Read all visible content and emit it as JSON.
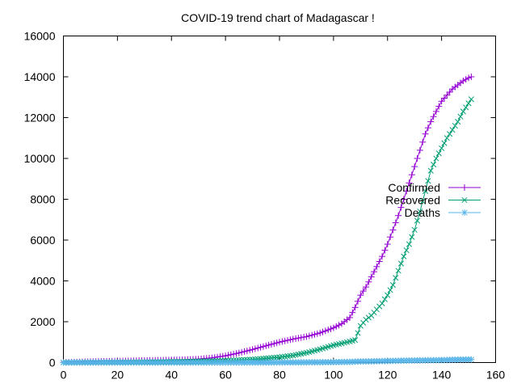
{
  "chart_data": {
    "type": "line",
    "title": "COVID-19 trend chart of Madagascar !",
    "xlabel": "",
    "ylabel": "",
    "xlim": [
      0,
      160
    ],
    "ylim": [
      0,
      16000
    ],
    "x_ticks": [
      0,
      20,
      40,
      60,
      80,
      100,
      120,
      140,
      160
    ],
    "y_ticks": [
      0,
      2000,
      4000,
      6000,
      8000,
      10000,
      12000,
      14000,
      16000
    ],
    "grid": false,
    "legend_position": "right",
    "series": [
      {
        "name": "Confirmed",
        "color": "#9400d3",
        "marker": "plus",
        "points": [
          [
            0,
            12
          ],
          [
            5,
            25
          ],
          [
            10,
            45
          ],
          [
            15,
            60
          ],
          [
            20,
            70
          ],
          [
            25,
            85
          ],
          [
            30,
            100
          ],
          [
            35,
            110
          ],
          [
            40,
            125
          ],
          [
            45,
            140
          ],
          [
            50,
            170
          ],
          [
            55,
            230
          ],
          [
            60,
            330
          ],
          [
            65,
            470
          ],
          [
            70,
            640
          ],
          [
            75,
            820
          ],
          [
            80,
            1000
          ],
          [
            85,
            1150
          ],
          [
            90,
            1270
          ],
          [
            95,
            1450
          ],
          [
            100,
            1700
          ],
          [
            103,
            1900
          ],
          [
            106,
            2200
          ],
          [
            108,
            2700
          ],
          [
            110,
            3300
          ],
          [
            112,
            3700
          ],
          [
            114,
            4200
          ],
          [
            116,
            4700
          ],
          [
            118,
            5200
          ],
          [
            120,
            5800
          ],
          [
            122,
            6500
          ],
          [
            124,
            7200
          ],
          [
            126,
            8000
          ],
          [
            128,
            8800
          ],
          [
            130,
            9600
          ],
          [
            132,
            10400
          ],
          [
            134,
            11200
          ],
          [
            136,
            11800
          ],
          [
            138,
            12300
          ],
          [
            140,
            12800
          ],
          [
            142,
            13100
          ],
          [
            144,
            13400
          ],
          [
            146,
            13600
          ],
          [
            148,
            13800
          ],
          [
            150,
            13950
          ],
          [
            151,
            14000
          ]
        ]
      },
      {
        "name": "Recovered",
        "color": "#009e73",
        "marker": "cross",
        "points": [
          [
            0,
            2
          ],
          [
            10,
            8
          ],
          [
            20,
            15
          ],
          [
            30,
            25
          ],
          [
            40,
            40
          ],
          [
            50,
            60
          ],
          [
            60,
            90
          ],
          [
            70,
            150
          ],
          [
            80,
            260
          ],
          [
            85,
            350
          ],
          [
            90,
            480
          ],
          [
            95,
            650
          ],
          [
            100,
            850
          ],
          [
            105,
            1000
          ],
          [
            108,
            1100
          ],
          [
            110,
            1800
          ],
          [
            112,
            2100
          ],
          [
            114,
            2300
          ],
          [
            116,
            2600
          ],
          [
            118,
            2900
          ],
          [
            120,
            3300
          ],
          [
            122,
            3800
          ],
          [
            124,
            4500
          ],
          [
            126,
            5200
          ],
          [
            128,
            5800
          ],
          [
            130,
            6500
          ],
          [
            132,
            7400
          ],
          [
            134,
            8400
          ],
          [
            136,
            9400
          ],
          [
            138,
            10000
          ],
          [
            140,
            10500
          ],
          [
            142,
            11000
          ],
          [
            144,
            11400
          ],
          [
            146,
            11800
          ],
          [
            148,
            12300
          ],
          [
            150,
            12700
          ],
          [
            151,
            12900
          ]
        ]
      },
      {
        "name": "Deaths",
        "color": "#56b4e9",
        "marker": "star",
        "points": [
          [
            0,
            0
          ],
          [
            20,
            0
          ],
          [
            40,
            0
          ],
          [
            60,
            0
          ],
          [
            70,
            2
          ],
          [
            80,
            5
          ],
          [
            90,
            10
          ],
          [
            100,
            20
          ],
          [
            105,
            30
          ],
          [
            110,
            50
          ],
          [
            115,
            60
          ],
          [
            120,
            75
          ],
          [
            125,
            90
          ],
          [
            130,
            100
          ],
          [
            135,
            110
          ],
          [
            140,
            120
          ],
          [
            145,
            140
          ],
          [
            150,
            150
          ],
          [
            151,
            152
          ]
        ]
      }
    ]
  }
}
